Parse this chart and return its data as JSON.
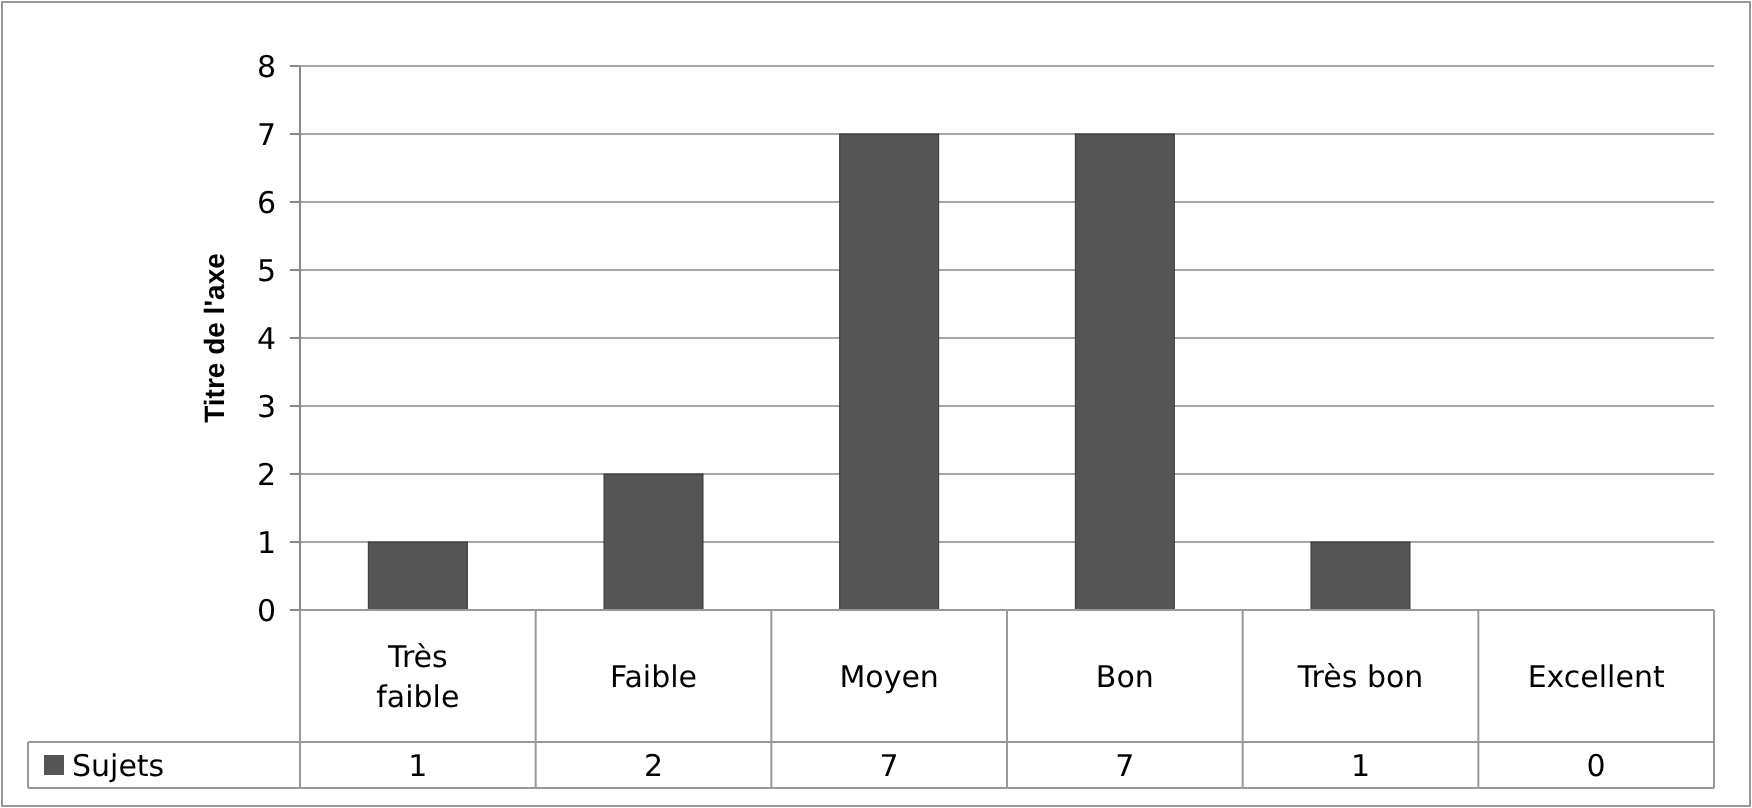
{
  "chart_data": {
    "type": "bar",
    "ylabel": "Titre de l'axe",
    "categories": [
      "Très faible",
      "Faible",
      "Moyen",
      "Bon",
      "Très bon",
      "Excellent"
    ],
    "series": [
      {
        "name": "Sujets",
        "color": "#555555",
        "values": [
          1,
          2,
          7,
          7,
          1,
          0
        ]
      }
    ],
    "ylim": [
      0,
      8
    ],
    "yticks": [
      0,
      1,
      2,
      3,
      4,
      5,
      6,
      7,
      8
    ],
    "grid": "y",
    "legend": "bottom",
    "data_labels": true
  }
}
